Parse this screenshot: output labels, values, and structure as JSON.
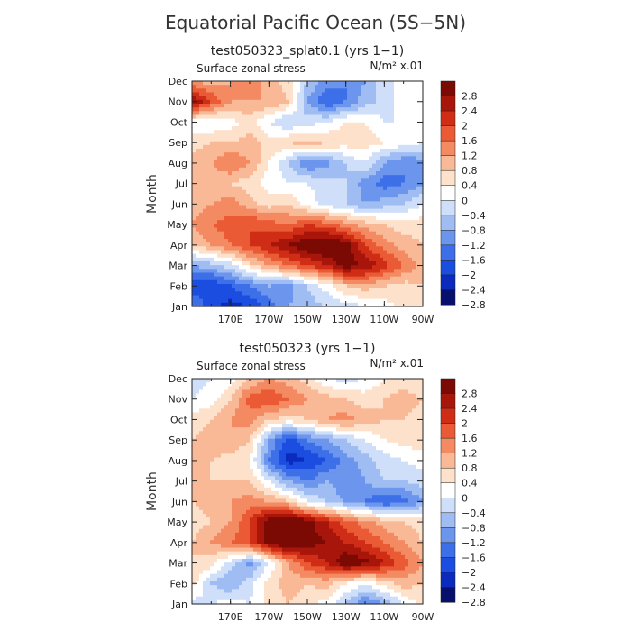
{
  "figure_title": "Equatorial Pacific Ocean (5S−5N)",
  "colors": [
    "#08106e",
    "#0a2bbd",
    "#1a4de0",
    "#3d6fe8",
    "#6c95ed",
    "#9fbcf3",
    "#cfdff9",
    "#ffffff",
    "#fde1cb",
    "#f9b896",
    "#f48a62",
    "#ea5a35",
    "#cf2d16",
    "#a8150a",
    "#7a0a03"
  ],
  "colorbar_labels": [
    "2.8",
    "2.4",
    "2",
    "1.6",
    "1.2",
    "0.8",
    "0.4",
    "0",
    "−0.4",
    "−0.8",
    "−1.2",
    "−1.6",
    "−2",
    "−2.4",
    "−2.8"
  ],
  "chart_data": [
    {
      "type": "heatmap",
      "title": "test050323_splat0.1 (yrs 1−1)",
      "left_label": "Surface zonal stress",
      "units": "N/m² x.01",
      "ylabel": "Month",
      "y_ticks": [
        "Jan",
        "Feb",
        "Mar",
        "Apr",
        "May",
        "Jun",
        "Jul",
        "Aug",
        "Sep",
        "Oct",
        "Nov",
        "Dec"
      ],
      "x_ticks": [
        "170E",
        "170W",
        "150W",
        "130W",
        "110W",
        "90W"
      ],
      "xlim_lon": [
        150,
        270
      ],
      "levels": [
        -2.8,
        -2.4,
        -2,
        -1.6,
        -1.2,
        -0.8,
        -0.4,
        0,
        0.4,
        0.8,
        1.2,
        1.6,
        2,
        2.4,
        2.8
      ],
      "grid": [
        [
          -1.6,
          -2.2,
          -2.6,
          -2.4,
          -1.8,
          -1.2,
          -1.0,
          -0.8,
          -0.6,
          -0.4,
          -0.2,
          0.2,
          0.4
        ],
        [
          -2.2,
          -2.4,
          -2.0,
          -1.6,
          -1.2,
          -1.4,
          -0.8,
          -0.2,
          0.4,
          0.6,
          0.4,
          0.2,
          0.4
        ],
        [
          -1.2,
          -1.0,
          -0.6,
          0.2,
          0.8,
          1.2,
          1.6,
          2.0,
          2.6,
          2.4,
          1.8,
          1.2,
          0.6
        ],
        [
          0.4,
          0.8,
          1.2,
          1.6,
          2.0,
          2.4,
          2.8,
          3.0,
          2.6,
          1.6,
          1.0,
          0.6,
          0.4
        ],
        [
          0.8,
          1.2,
          1.4,
          1.6,
          1.4,
          1.2,
          1.6,
          1.4,
          1.0,
          0.6,
          0.4,
          0.2,
          0.2
        ],
        [
          0.6,
          0.8,
          1.0,
          0.6,
          0.2,
          0.4,
          -0.2,
          -0.6,
          -0.8,
          -1.2,
          -1.0,
          -0.8,
          -0.4
        ],
        [
          0.4,
          0.6,
          0.4,
          0.2,
          -0.2,
          -0.4,
          -0.4,
          -0.6,
          -0.8,
          -1.4,
          -1.8,
          -1.6,
          -1.2
        ],
        [
          0.6,
          0.8,
          1.2,
          0.8,
          0.0,
          -0.8,
          -1.6,
          -1.4,
          -0.8,
          -0.4,
          -1.2,
          -1.6,
          -1.4
        ],
        [
          0.2,
          0.4,
          0.4,
          0.6,
          0.2,
          0.4,
          0.6,
          0.4,
          0.2,
          0.2,
          0.0,
          -0.2,
          -0.4
        ],
        [
          -0.2,
          -0.4,
          -0.2,
          0.2,
          -0.4,
          -0.8,
          -0.6,
          -0.4,
          0.0,
          0.0,
          -0.4,
          -0.4,
          0.0
        ],
        [
          2.4,
          1.6,
          0.8,
          0.8,
          0.8,
          0.4,
          -1.2,
          -2.0,
          -1.6,
          -1.0,
          -0.6,
          -0.2,
          0.0
        ],
        [
          0.8,
          0.6,
          0.8,
          1.0,
          0.6,
          0.2,
          -0.8,
          -1.4,
          -1.6,
          -1.2,
          -0.6,
          -0.2,
          0.0
        ]
      ]
    },
    {
      "type": "heatmap",
      "title": "test050323 (yrs 1−1)",
      "left_label": "Surface zonal stress",
      "units": "N/m² x.01",
      "ylabel": "Month",
      "y_ticks": [
        "Jan",
        "Feb",
        "Mar",
        "Apr",
        "May",
        "Jun",
        "Jul",
        "Aug",
        "Sep",
        "Oct",
        "Nov",
        "Dec"
      ],
      "x_ticks": [
        "170E",
        "170W",
        "150W",
        "130W",
        "110W",
        "90W"
      ],
      "xlim_lon": [
        150,
        270
      ],
      "levels": [
        -2.8,
        -2.4,
        -2,
        -1.6,
        -1.2,
        -0.8,
        -0.4,
        0,
        0.4,
        0.8,
        1.2,
        1.6,
        2,
        2.4,
        2.8
      ],
      "grid": [
        [
          -0.6,
          -0.4,
          -0.2,
          -0.4,
          0.2,
          0.4,
          0.2,
          -0.2,
          -0.8,
          -1.6,
          -1.2,
          -0.4,
          0.2
        ],
        [
          0.2,
          -0.8,
          -1.2,
          -0.6,
          0.2,
          0.6,
          0.4,
          0.6,
          0.0,
          -0.4,
          0.2,
          0.6,
          0.4
        ],
        [
          0.4,
          0.2,
          -0.6,
          -1.4,
          -0.4,
          0.8,
          1.6,
          2.0,
          2.8,
          2.6,
          2.0,
          1.4,
          0.8
        ],
        [
          0.4,
          0.8,
          1.2,
          1.6,
          2.6,
          3.0,
          2.6,
          2.4,
          2.0,
          1.6,
          1.2,
          0.8,
          0.4
        ],
        [
          0.2,
          0.4,
          0.8,
          1.6,
          2.8,
          3.2,
          2.6,
          2.0,
          1.4,
          1.0,
          0.6,
          0.4,
          0.2
        ],
        [
          0.4,
          0.6,
          0.8,
          1.0,
          0.8,
          0.4,
          -0.4,
          -0.8,
          -1.2,
          -1.6,
          -2.0,
          -1.8,
          -1.2
        ],
        [
          0.6,
          0.4,
          0.4,
          0.4,
          -0.4,
          -1.2,
          -1.6,
          -1.2,
          -1.6,
          -1.2,
          -0.8,
          -0.8,
          -0.6
        ],
        [
          0.6,
          0.4,
          0.2,
          0.0,
          -1.6,
          -2.6,
          -2.4,
          -2.0,
          -1.4,
          -1.0,
          -0.6,
          -0.4,
          -0.2
        ],
        [
          0.4,
          0.6,
          0.8,
          0.4,
          -1.2,
          -2.2,
          -1.6,
          -1.2,
          -0.8,
          -0.4,
          0.0,
          0.2,
          0.2
        ],
        [
          0.2,
          0.4,
          0.8,
          1.0,
          0.4,
          0.2,
          0.4,
          0.8,
          1.0,
          0.6,
          0.4,
          0.4,
          0.2
        ],
        [
          -0.4,
          -0.2,
          0.4,
          1.4,
          1.6,
          1.2,
          0.8,
          0.6,
          0.4,
          0.2,
          0.4,
          0.6,
          0.4
        ],
        [
          -0.6,
          -0.4,
          -0.2,
          0.4,
          0.8,
          0.6,
          0.2,
          -0.4,
          -0.6,
          -0.4,
          0.0,
          0.2,
          0.0
        ]
      ]
    }
  ]
}
